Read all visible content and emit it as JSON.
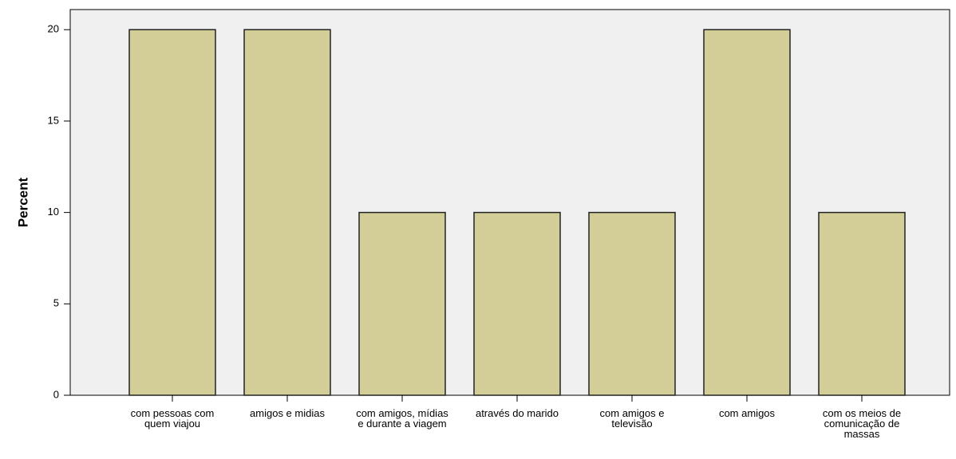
{
  "chart_data": {
    "type": "bar",
    "y_label": "Percent",
    "categories": [
      "com pessoas com quem viajou",
      "amigos e midias",
      "com amigos, mídias e durante a viagem",
      "através do marido",
      "com amigos e televisão",
      "com amigos",
      "com os meios de comunicação de massas"
    ],
    "values": [
      20,
      20,
      10,
      10,
      10,
      20,
      10
    ],
    "color": "#d3ce97",
    "ylim": [
      0,
      21.1
    ],
    "yticks": [
      0,
      5,
      10,
      15,
      20
    ],
    "grid": false
  }
}
